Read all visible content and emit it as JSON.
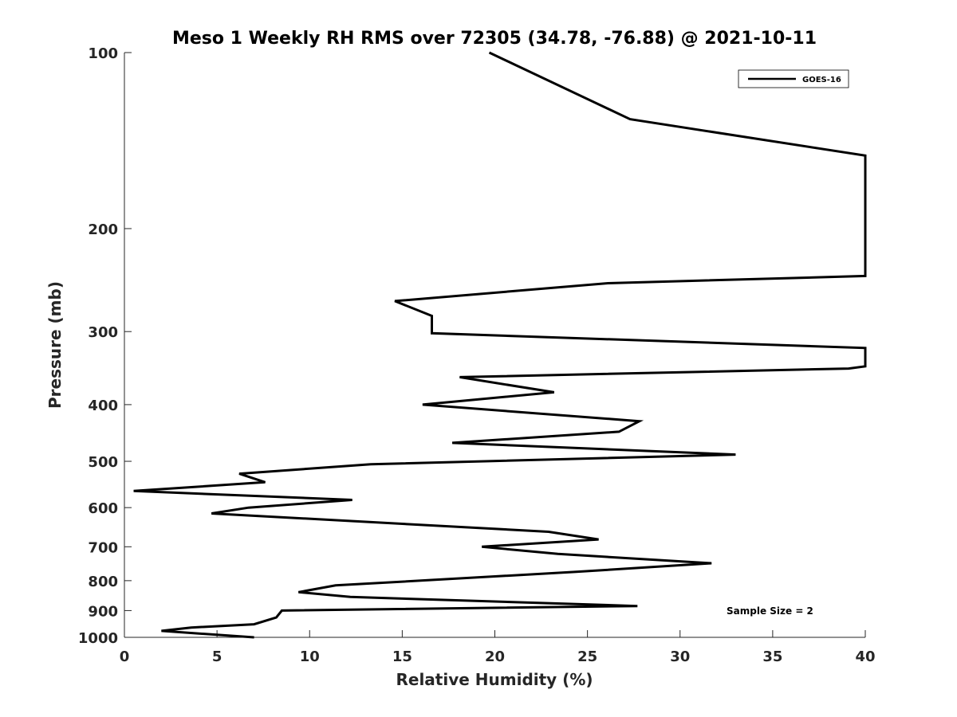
{
  "chart_data": {
    "type": "line",
    "title": "Meso 1 Weekly RH RMS over 72305 (34.78, -76.88) @ 2021-10-11",
    "xlabel": "Relative Humidity (%)",
    "ylabel": "Pressure (mb)",
    "xlim": [
      0,
      40
    ],
    "ylim": [
      100,
      1000
    ],
    "y_scale": "log",
    "y_reversed": true,
    "grid": false,
    "legend_position": "top-right",
    "x_ticks": [
      "0",
      "5",
      "10",
      "15",
      "20",
      "25",
      "30",
      "35",
      "40"
    ],
    "y_ticks": [
      "100",
      "200",
      "300",
      "400",
      "500",
      "600",
      "700",
      "800",
      "900",
      "1000"
    ],
    "annotation": "Sample Size = 2",
    "series": [
      {
        "name": "GOES-16",
        "color": "#000000",
        "points": [
          [
            7.0,
            1000
          ],
          [
            2.0,
            975
          ],
          [
            3.6,
            962
          ],
          [
            7.0,
            950
          ],
          [
            8.2,
            925
          ],
          [
            8.5,
            900
          ],
          [
            27.7,
            884
          ],
          [
            12.2,
            853
          ],
          [
            9.4,
            837
          ],
          [
            11.4,
            815
          ],
          [
            24.3,
            773
          ],
          [
            31.7,
            747
          ],
          [
            23.4,
            720
          ],
          [
            19.3,
            700
          ],
          [
            25.6,
            680
          ],
          [
            22.9,
            660
          ],
          [
            4.7,
            614
          ],
          [
            6.7,
            600
          ],
          [
            12.3,
            582
          ],
          [
            0.5,
            562
          ],
          [
            7.6,
            543
          ],
          [
            6.2,
            525
          ],
          [
            13.3,
            506
          ],
          [
            33.0,
            487
          ],
          [
            17.7,
            465
          ],
          [
            26.7,
            445
          ],
          [
            27.8,
            427
          ],
          [
            16.1,
            400
          ],
          [
            23.2,
            381
          ],
          [
            18.1,
            359
          ],
          [
            39.1,
            347
          ],
          [
            40.0,
            344
          ],
          [
            40.0,
            320
          ],
          [
            16.6,
            302
          ],
          [
            16.6,
            282
          ],
          [
            14.6,
            266
          ],
          [
            26.1,
            248
          ],
          [
            40.0,
            241
          ],
          [
            40.0,
            150
          ],
          [
            27.3,
            130
          ],
          [
            19.7,
            100
          ]
        ]
      }
    ]
  }
}
